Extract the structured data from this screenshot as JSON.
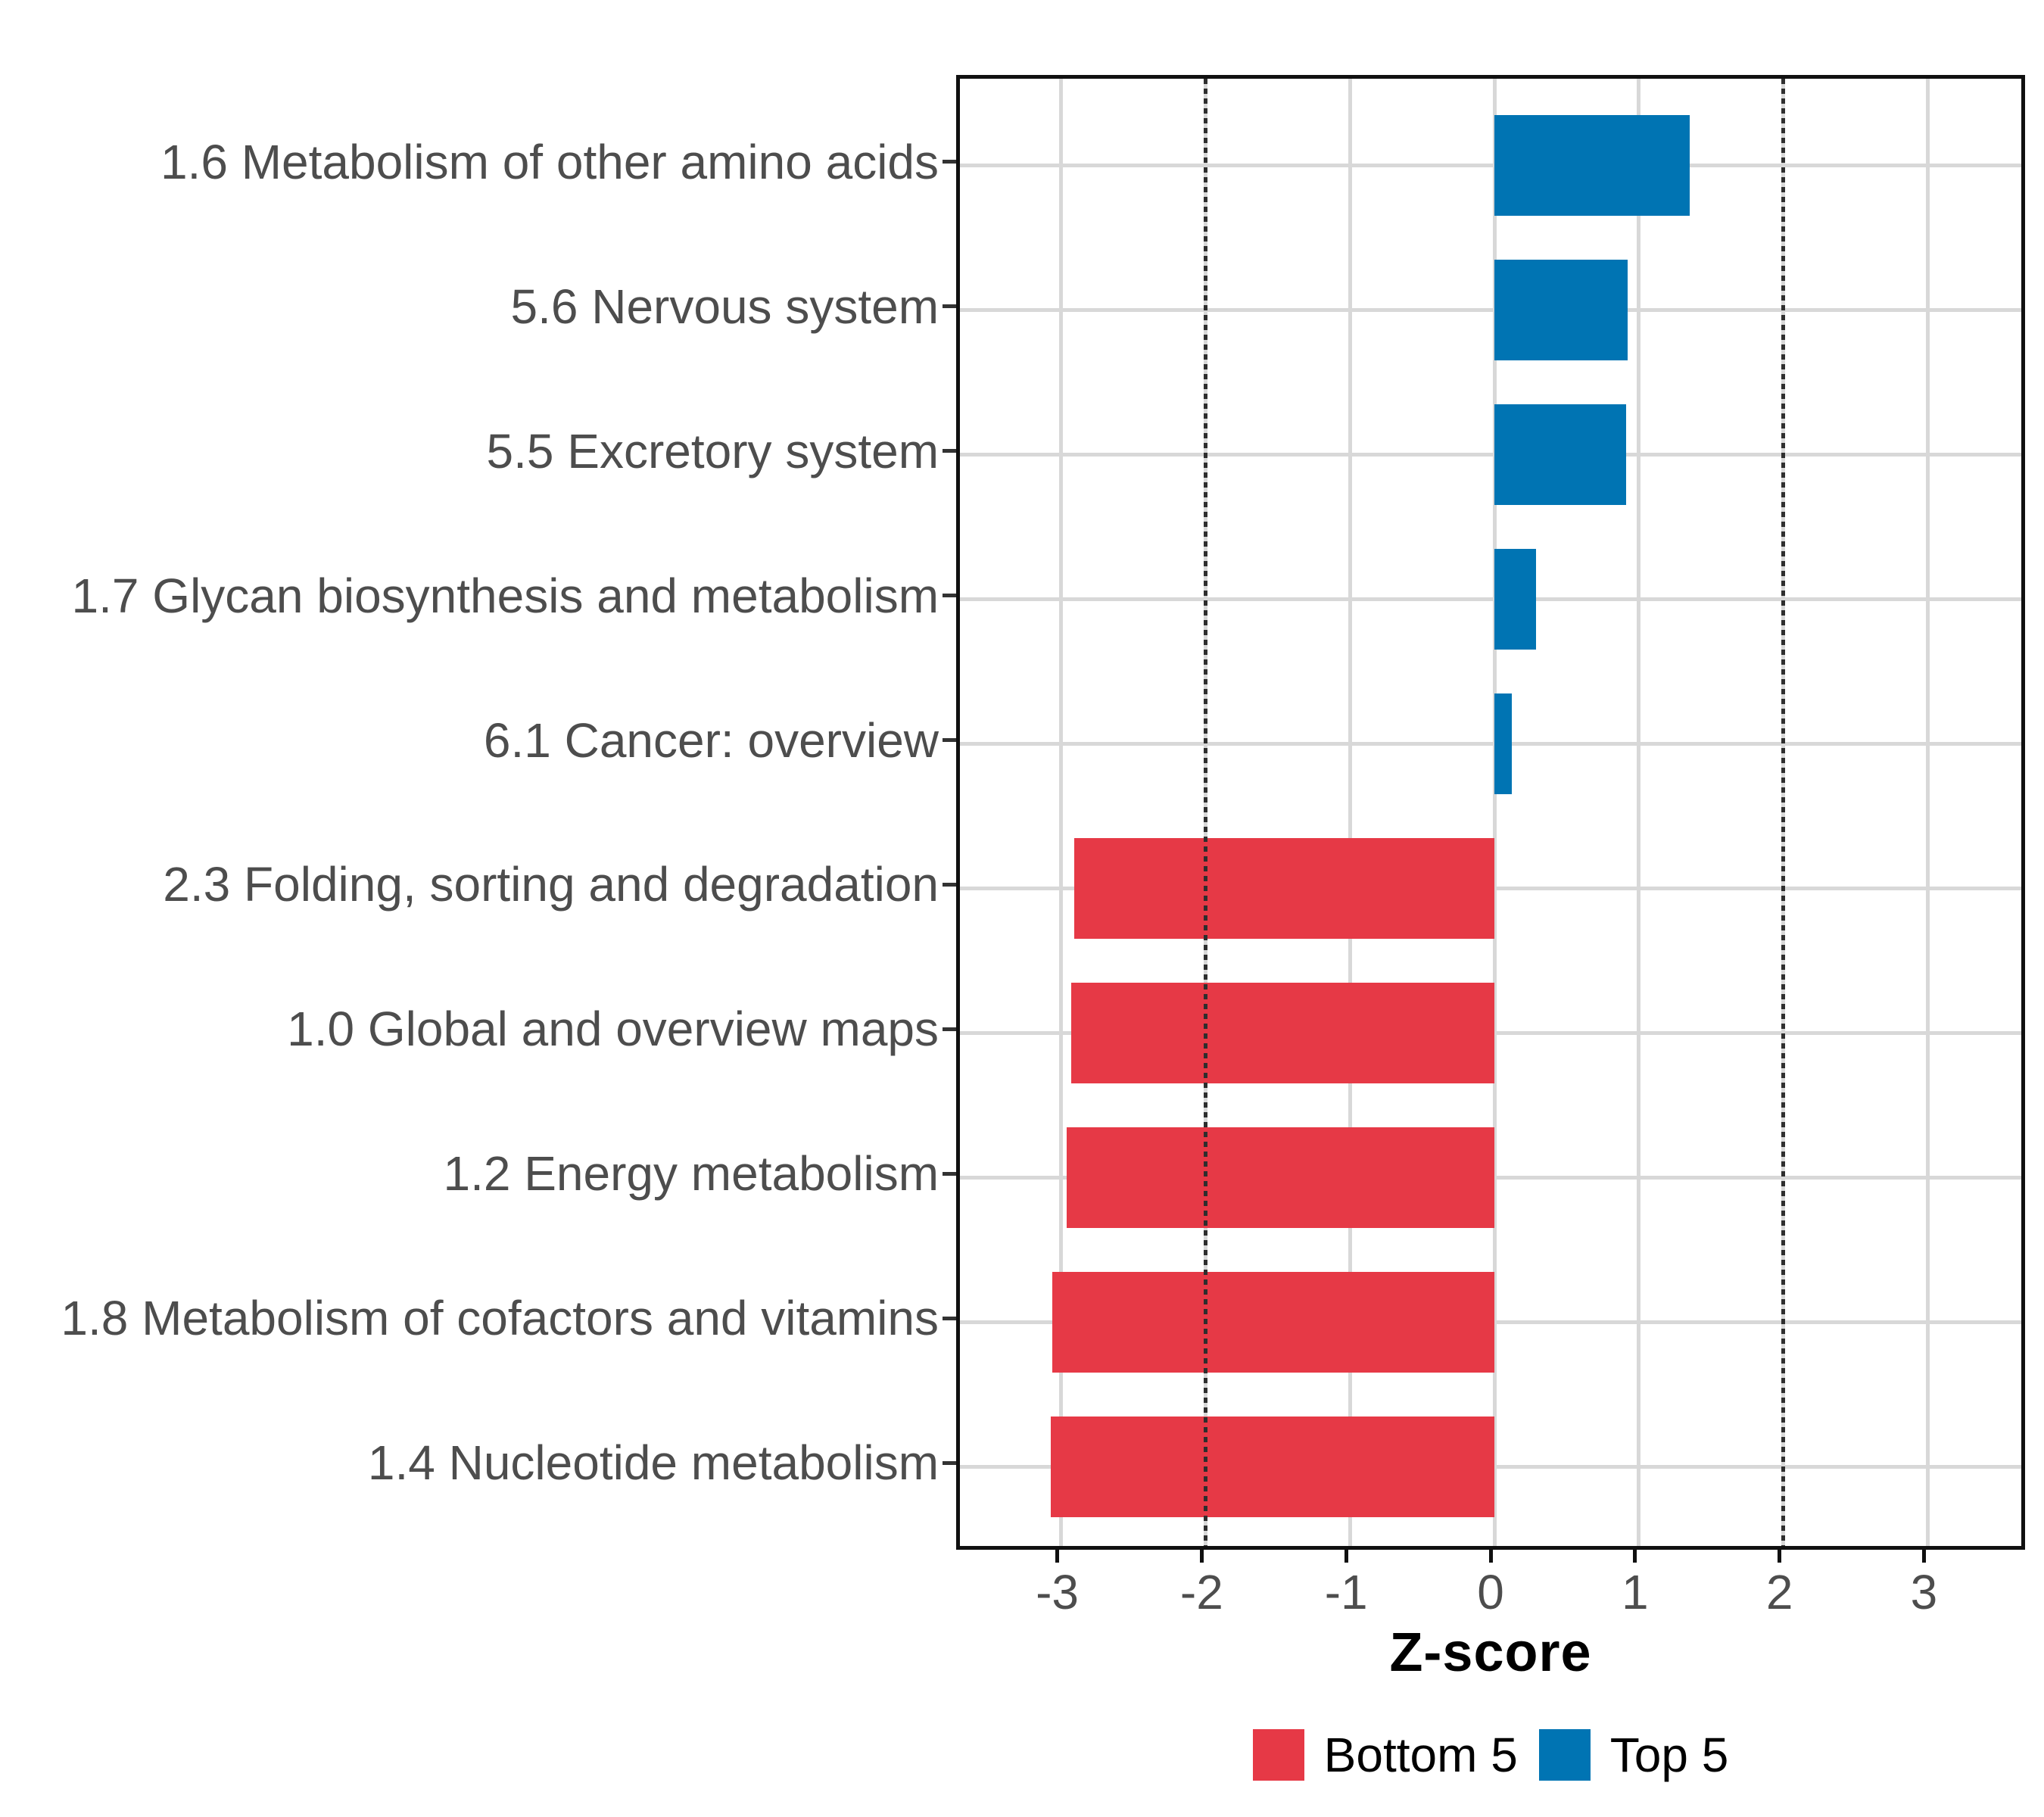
{
  "chart_data": {
    "type": "bar",
    "orientation": "horizontal",
    "title": "",
    "xlabel": "Z-score",
    "ylabel": "",
    "xlim": [
      -3.7,
      3.7
    ],
    "xticks": [
      -3,
      -2,
      -1,
      0,
      1,
      2,
      3
    ],
    "xtick_labels": [
      "-3",
      "-2",
      "-1",
      "0",
      "1",
      "2",
      "3"
    ],
    "reference_lines": [
      -2,
      2
    ],
    "grid": "major-only",
    "legend_position": "bottom",
    "categories": [
      "1.6 Metabolism of other amino acids",
      "5.6 Nervous system",
      "5.5 Excretory system",
      "1.7 Glycan biosynthesis and metabolism",
      "6.1 Cancer: overview",
      "2.3 Folding, sorting and degradation",
      "1.0 Global and overview maps",
      "1.2 Energy metabolism",
      "1.8 Metabolism of cofactors and vitamins",
      "1.4 Nucleotide metabolism"
    ],
    "values": [
      1.35,
      0.92,
      0.91,
      0.29,
      0.12,
      -2.91,
      -2.93,
      -2.96,
      -3.06,
      -3.07
    ],
    "groups": [
      "Top 5",
      "Top 5",
      "Top 5",
      "Top 5",
      "Top 5",
      "Bottom 5",
      "Bottom 5",
      "Bottom 5",
      "Bottom 5",
      "Bottom 5"
    ],
    "legend": [
      {
        "label": "Bottom 5",
        "color": "#e63946"
      },
      {
        "label": "Top 5",
        "color": "#0074b3"
      }
    ],
    "colors": {
      "bottom5": "#e63946",
      "top5": "#0074b3",
      "gridline": "#d8d8d8",
      "reference_line": "#2e2e2e",
      "axis_text": "#4d4d4d",
      "panel_border": "#101010"
    }
  }
}
